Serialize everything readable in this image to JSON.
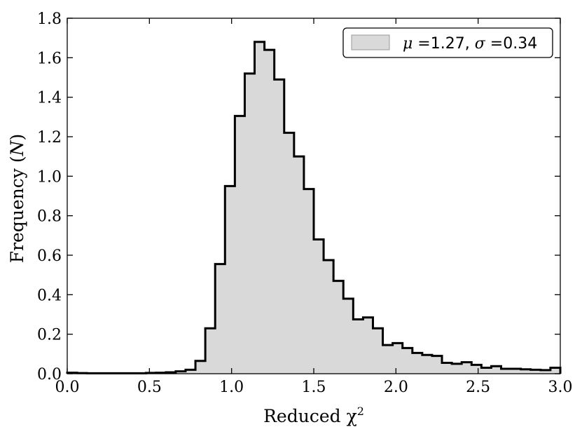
{
  "chart_data": {
    "type": "histogram",
    "xlabel": "Reduced χ",
    "xlabel_sup": "2",
    "ylabel_prefix": "Frequency (",
    "ylabel_var": "N",
    "ylabel_suffix": ")",
    "xlim": [
      0.0,
      3.0
    ],
    "ylim": [
      0.0,
      1.8
    ],
    "xticks": [
      0.0,
      0.5,
      1.0,
      1.5,
      2.0,
      2.5,
      3.0
    ],
    "yticks": [
      0.0,
      0.2,
      0.4,
      0.6,
      0.8,
      1.0,
      1.2,
      1.4,
      1.6,
      1.8
    ],
    "xtick_labels": [
      "0.0",
      "0.5",
      "1.0",
      "1.5",
      "2.0",
      "2.5",
      "3.0"
    ],
    "ytick_labels": [
      "0.0",
      "0.2",
      "0.4",
      "0.6",
      "0.8",
      "1.0",
      "1.2",
      "1.4",
      "1.6",
      "1.8"
    ],
    "bin_width": 0.06,
    "bins_start": 0.0,
    "values": [
      0.005,
      0.003,
      0.002,
      0.002,
      0.002,
      0.002,
      0.002,
      0.002,
      0.004,
      0.005,
      0.007,
      0.012,
      0.02,
      0.065,
      0.23,
      0.555,
      0.95,
      1.305,
      1.52,
      1.68,
      1.64,
      1.49,
      1.22,
      1.1,
      0.935,
      0.68,
      0.575,
      0.47,
      0.38,
      0.275,
      0.285,
      0.23,
      0.145,
      0.155,
      0.13,
      0.105,
      0.095,
      0.09,
      0.055,
      0.05,
      0.058,
      0.045,
      0.03,
      0.038,
      0.025,
      0.025,
      0.022,
      0.02,
      0.018,
      0.03
    ],
    "fill_color": "#d9d9d9",
    "edge_color": "#000000",
    "grid": false,
    "legend": {
      "placement": "top-right",
      "mu_symbol": "μ",
      "mu_eq": " =",
      "mu_value": "1.27",
      "sep": ", ",
      "sigma_symbol": "σ",
      "sigma_eq": " =",
      "sigma_value": "0.34"
    }
  }
}
